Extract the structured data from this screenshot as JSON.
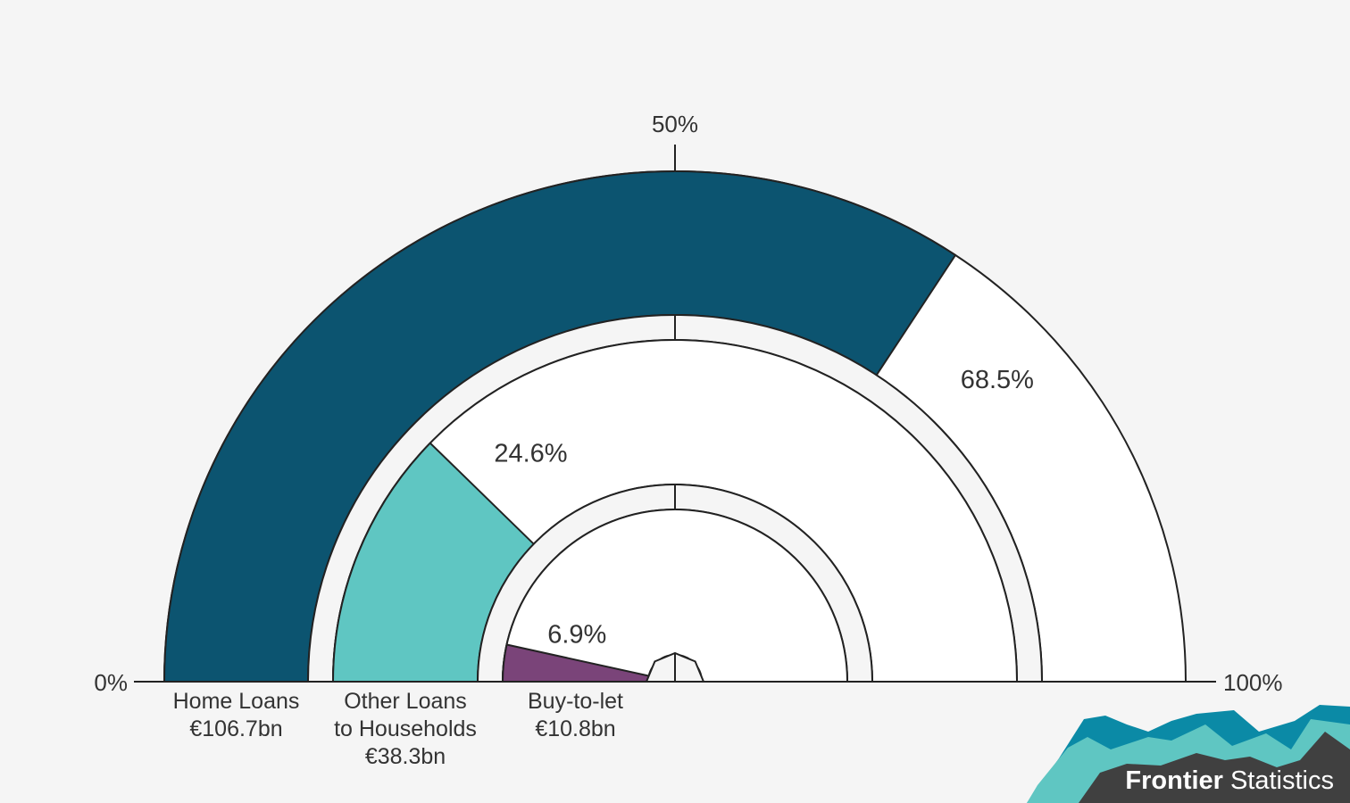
{
  "chart_data": {
    "type": "radial-bar",
    "axis": {
      "min_label": "0%",
      "mid_label": "50%",
      "max_label": "100%",
      "range": [
        0,
        100
      ]
    },
    "series": [
      {
        "name": "Home Loans",
        "line2": "",
        "amount": "€106.7bn",
        "value": 68.5,
        "value_label": "68.5%",
        "color": "#0c5470"
      },
      {
        "name": "Other Loans",
        "line2": "to Households",
        "amount": "€38.3bn",
        "value": 24.6,
        "value_label": "24.6%",
        "color": "#5fc6c2"
      },
      {
        "name": "Buy-to-let",
        "line2": "",
        "amount": "€10.8bn",
        "value": 6.9,
        "value_label": "6.9%",
        "color": "#7a4479"
      }
    ],
    "track_color": "#ffffff",
    "background_color": "#f5f5f5"
  },
  "logo": {
    "bold": "Frontier",
    "regular": "Statistics",
    "colors": [
      "#0b8aa6",
      "#5fc6c2",
      "#404040"
    ]
  }
}
